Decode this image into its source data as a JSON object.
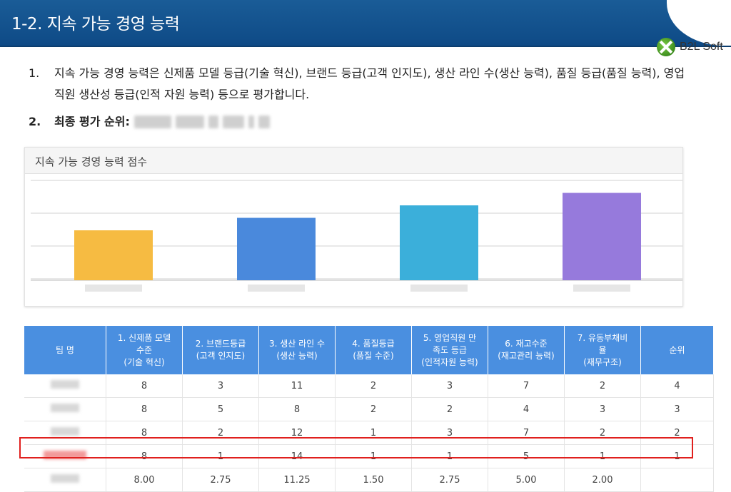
{
  "header": {
    "title": "1-2. 지속 가능 경영 능력"
  },
  "logo": {
    "text": "B2L Soft"
  },
  "paragraph1": {
    "num": "1.",
    "text": "지속 가능 경영 능력은 신제품 모델 등급(기술 혁신), 브랜드 등급(고객 인지도), 생산 라인 수(생산 능력), 품질 등급(품질 능력), 영업직원 생산성 등급(인적 자원 능력) 등으로 평가합니다."
  },
  "paragraph2": {
    "num": "2.",
    "label": "최종 평가 순위:"
  },
  "chart_data": {
    "type": "bar",
    "title": "지속 가능 경영 능력 점수",
    "categories": [
      "",
      "",
      "",
      ""
    ],
    "values": [
      4.0,
      5.0,
      6.0,
      7.0
    ],
    "colors": [
      "#f6bb42",
      "#4a89dc",
      "#3bafda",
      "#967adc"
    ],
    "ylim": [
      0,
      8.0
    ],
    "grid": true,
    "legend": "none"
  },
  "table": {
    "headers": [
      [
        "팀 명"
      ],
      [
        "1. 신제품 모델",
        "수준",
        "(기술 혁신)"
      ],
      [
        "2. 브랜드등급",
        "(고객 인지도)"
      ],
      [
        "3. 생산 라인 수",
        "(생산 능력)"
      ],
      [
        "4. 품질등급",
        "(품질 수준)"
      ],
      [
        "5. 영업직원 만",
        "족도 등급",
        "(인적자원 능력)"
      ],
      [
        "6. 재고수준",
        "(재고관리 능력)"
      ],
      [
        "7. 유동부채비",
        "율",
        "(재무구조)"
      ],
      [
        "순위"
      ]
    ],
    "rows": [
      {
        "team": "",
        "cells": [
          "8",
          "3",
          "11",
          "2",
          "3",
          "7",
          "2",
          "4"
        ]
      },
      {
        "team": "",
        "cells": [
          "8",
          "5",
          "8",
          "2",
          "2",
          "4",
          "3",
          "3"
        ]
      },
      {
        "team": "",
        "cells": [
          "8",
          "2",
          "12",
          "1",
          "3",
          "7",
          "2",
          "2"
        ]
      },
      {
        "team": "",
        "cells": [
          "8",
          "1",
          "14",
          "1",
          "1",
          "5",
          "1",
          "1"
        ]
      },
      {
        "team": "",
        "cells": [
          "8.00",
          "2.75",
          "11.25",
          "1.50",
          "2.75",
          "5.00",
          "2.00",
          ""
        ]
      }
    ]
  },
  "colors": {
    "header_bg": "#0e4a86",
    "table_header": "#4a8fe0",
    "highlight": "#e0201e"
  }
}
